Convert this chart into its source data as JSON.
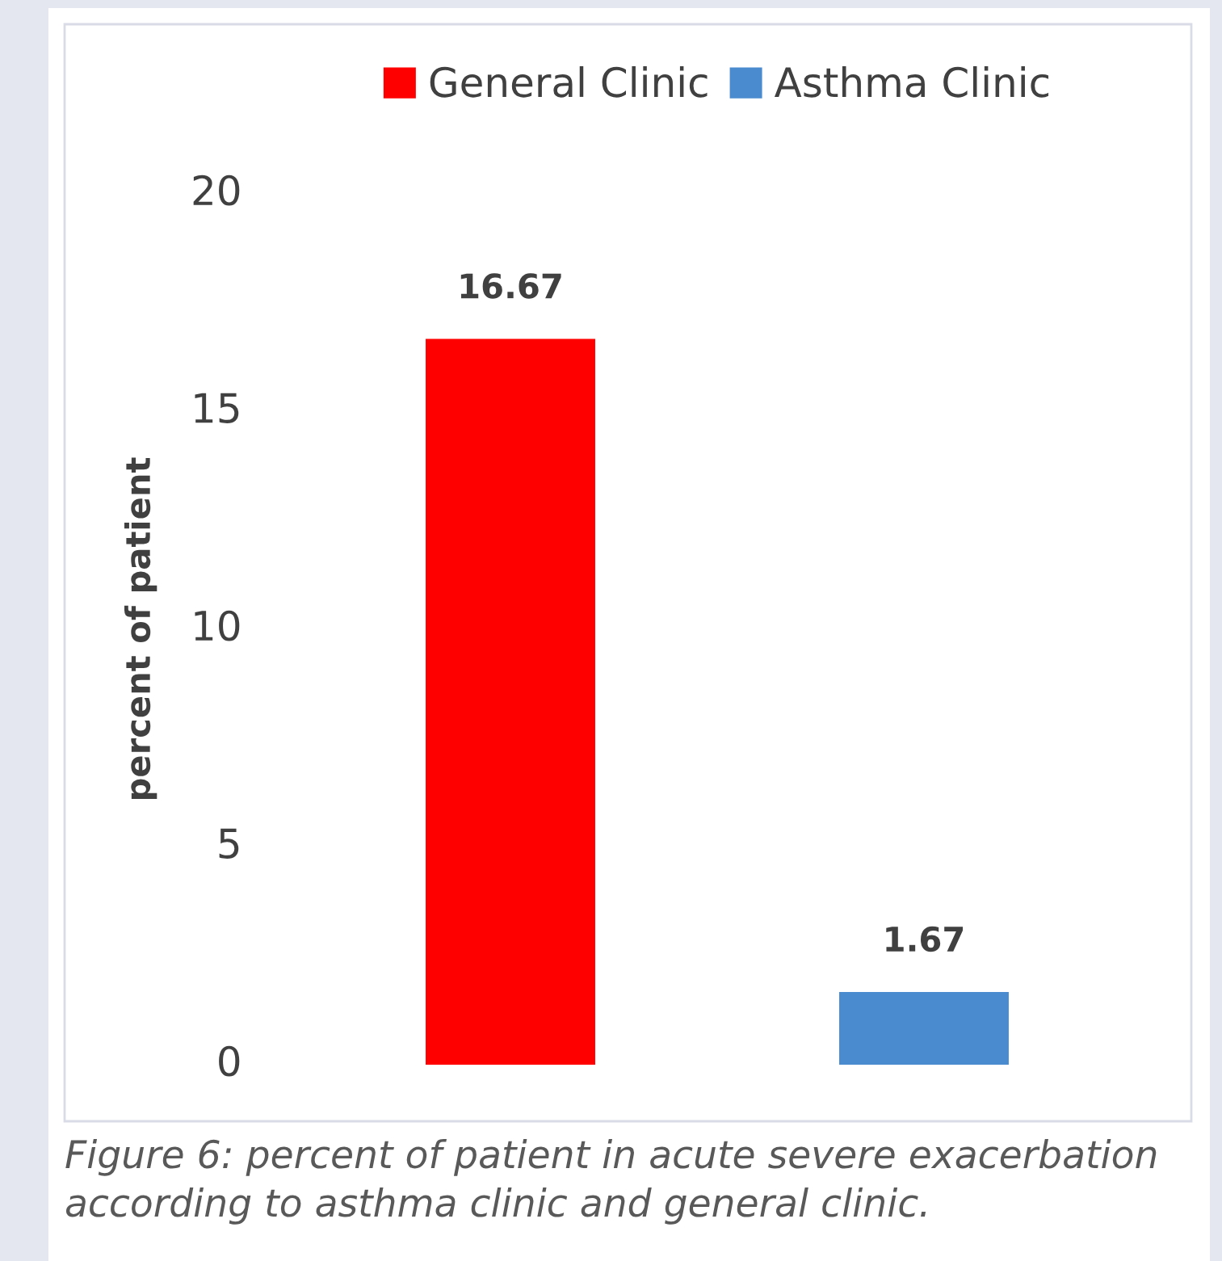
{
  "chart_data": {
    "type": "bar",
    "categories": [
      null,
      null
    ],
    "stacked": true,
    "series": [
      {
        "name": "General Clinic",
        "color": "#ff0000",
        "values": [
          16.67,
          null
        ]
      },
      {
        "name": "Asthma Clinic",
        "color": "#4a8bd0",
        "values": [
          null,
          1.67
        ]
      }
    ],
    "ylabel": "percent of patient",
    "ylim": [
      0,
      20
    ],
    "yticks": [
      0,
      5,
      10,
      15,
      20
    ],
    "data_labels": true,
    "legend": "top",
    "annotations": [
      "Figure 6: percent of patient in acute severe exacerbation according to asthma clinic and general clinic."
    ]
  }
}
